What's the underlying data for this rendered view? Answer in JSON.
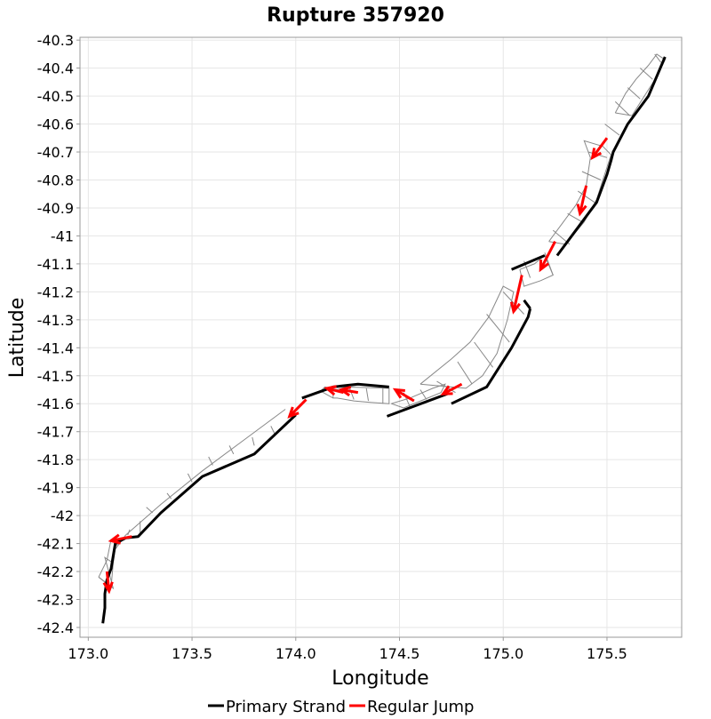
{
  "chart_data": {
    "type": "map-line",
    "title": "Rupture 357920",
    "xlabel": "Longitude",
    "ylabel": "Latitude",
    "xlim": [
      172.96,
      175.86
    ],
    "ylim": [
      -42.435,
      -40.29
    ],
    "x_ticks": [
      173.0,
      173.5,
      174.0,
      174.5,
      175.0,
      175.5
    ],
    "x_tick_labels": [
      "173.0",
      "173.5",
      "174.0",
      "174.5",
      "175.0",
      "175.5"
    ],
    "y_ticks": [
      -40.3,
      -40.4,
      -40.5,
      -40.6,
      -40.7,
      -40.8,
      -40.9,
      -41.0,
      -41.1,
      -41.2,
      -41.3,
      -41.4,
      -41.5,
      -41.6,
      -41.7,
      -41.8,
      -41.9,
      -42.0,
      -42.1,
      -42.2,
      -42.3,
      -42.4
    ],
    "y_tick_labels": [
      "-40.3",
      "-40.4",
      "-40.5",
      "-40.6",
      "-40.7",
      "-40.8",
      "-40.9",
      "-41",
      "-41.1",
      "-41.2",
      "-41.3",
      "-41.4",
      "-41.5",
      "-41.6",
      "-41.7",
      "-41.8",
      "-41.9",
      "-42",
      "-42.1",
      "-42.2",
      "-42.3",
      "-42.4"
    ],
    "grid": true,
    "legend_position": "bottom",
    "legend": [
      {
        "label": "Primary Strand",
        "color": "#000000"
      },
      {
        "label": "Regular Jump",
        "color": "#ff0000"
      }
    ],
    "primary_strand_color": "#000000",
    "jump_color": "#ff0000",
    "outline_color": "#888888",
    "series": [
      {
        "name": "Primary Strand",
        "style": "primary",
        "segments": [
          [
            [
              173.07,
              -42.385
            ],
            [
              173.08,
              -42.33
            ],
            [
              173.08,
              -42.28
            ],
            [
              173.09,
              -42.23
            ],
            [
              173.11,
              -42.19
            ],
            [
              173.13,
              -42.1
            ],
            [
              173.18,
              -42.08
            ],
            [
              173.24,
              -42.075
            ],
            [
              173.35,
              -41.99
            ],
            [
              173.55,
              -41.86
            ],
            [
              173.8,
              -41.78
            ],
            [
              174.0,
              -41.64
            ]
          ],
          [
            [
              174.03,
              -41.58
            ],
            [
              174.18,
              -41.54
            ],
            [
              174.3,
              -41.53
            ],
            [
              174.45,
              -41.54
            ]
          ],
          [
            [
              174.44,
              -41.645
            ],
            [
              174.73,
              -41.565
            ]
          ],
          [
            [
              174.75,
              -41.6
            ],
            [
              174.92,
              -41.54
            ],
            [
              175.04,
              -41.4
            ],
            [
              175.12,
              -41.29
            ],
            [
              175.13,
              -41.26
            ]
          ],
          [
            [
              175.13,
              -41.26
            ],
            [
              175.1,
              -41.23
            ]
          ],
          [
            [
              175.04,
              -41.12
            ],
            [
              175.2,
              -41.07
            ]
          ],
          [
            [
              175.26,
              -41.07
            ],
            [
              175.34,
              -40.99
            ],
            [
              175.45,
              -40.88
            ],
            [
              175.5,
              -40.78
            ],
            [
              175.52,
              -40.73
            ],
            [
              175.53,
              -40.7
            ],
            [
              175.6,
              -40.6
            ],
            [
              175.7,
              -40.5
            ],
            [
              175.78,
              -40.36
            ]
          ]
        ]
      },
      {
        "name": "Regular Jump",
        "style": "jump",
        "segments": [
          [
            [
              175.5,
              -40.65
            ],
            [
              175.43,
              -40.72
            ]
          ],
          [
            [
              175.4,
              -40.82
            ],
            [
              175.37,
              -40.92
            ]
          ],
          [
            [
              175.25,
              -41.02
            ],
            [
              175.18,
              -41.12
            ]
          ],
          [
            [
              175.09,
              -41.14
            ],
            [
              175.05,
              -41.27
            ]
          ],
          [
            [
              174.8,
              -41.53
            ],
            [
              174.71,
              -41.565
            ]
          ],
          [
            [
              174.57,
              -41.59
            ],
            [
              174.48,
              -41.55
            ]
          ],
          [
            [
              174.3,
              -41.56
            ],
            [
              174.22,
              -41.55
            ]
          ],
          [
            [
              174.23,
              -41.56
            ],
            [
              174.15,
              -41.545
            ]
          ],
          [
            [
              174.05,
              -41.585
            ],
            [
              173.97,
              -41.645
            ]
          ],
          [
            [
              173.21,
              -42.075
            ],
            [
              173.11,
              -42.09
            ]
          ],
          [
            [
              173.09,
              -42.2
            ],
            [
              173.1,
              -42.27
            ]
          ]
        ]
      }
    ],
    "fault_sections": [
      [
        [
          173.05,
          -42.22
        ],
        [
          173.12,
          -42.26
        ],
        [
          173.08,
          -42.15
        ],
        [
          173.12,
          -42.17
        ]
      ],
      [
        [
          173.13,
          -42.11
        ],
        [
          173.16,
          -42.09
        ]
      ],
      [
        [
          173.19,
          -42.07
        ],
        [
          173.2,
          -42.05
        ]
      ],
      [
        [
          173.25,
          -42.07
        ],
        [
          173.25,
          -42.02
        ]
      ],
      [
        [
          173.31,
          -41.99
        ],
        [
          173.28,
          -41.97
        ]
      ],
      [
        [
          173.4,
          -41.94
        ],
        [
          173.38,
          -41.92
        ]
      ],
      [
        [
          173.5,
          -41.88
        ],
        [
          173.48,
          -41.85
        ]
      ],
      [
        [
          173.6,
          -41.82
        ],
        [
          173.58,
          -41.79
        ]
      ],
      [
        [
          173.7,
          -41.78
        ],
        [
          173.68,
          -41.75
        ]
      ],
      [
        [
          173.8,
          -41.75
        ],
        [
          173.79,
          -41.72
        ]
      ],
      [
        [
          173.9,
          -41.71
        ],
        [
          173.88,
          -41.68
        ]
      ],
      [
        [
          174.18,
          -41.555
        ],
        [
          174.18,
          -41.58
        ]
      ],
      [
        [
          174.26,
          -41.545
        ],
        [
          174.28,
          -41.585
        ]
      ],
      [
        [
          174.34,
          -41.545
        ],
        [
          174.35,
          -41.59
        ]
      ],
      [
        [
          174.42,
          -41.545
        ],
        [
          174.42,
          -41.6
        ]
      ],
      [
        [
          174.55,
          -41.61
        ],
        [
          174.52,
          -41.56
        ]
      ],
      [
        [
          174.63,
          -41.585
        ],
        [
          174.6,
          -41.55
        ]
      ],
      [
        [
          174.77,
          -41.56
        ],
        [
          174.68,
          -41.52
        ]
      ],
      [
        [
          174.85,
          -41.53
        ],
        [
          174.78,
          -41.45
        ]
      ],
      [
        [
          174.95,
          -41.47
        ],
        [
          174.86,
          -41.38
        ]
      ],
      [
        [
          175.03,
          -41.38
        ],
        [
          174.92,
          -41.28
        ]
      ],
      [
        [
          175.1,
          -41.28
        ],
        [
          175.0,
          -41.2
        ]
      ],
      [
        [
          175.13,
          -41.15
        ],
        [
          175.1,
          -41.09
        ]
      ],
      [
        [
          175.24,
          -41.14
        ],
        [
          175.2,
          -41.06
        ]
      ],
      [
        [
          175.32,
          -41.03
        ],
        [
          175.24,
          -40.98
        ]
      ],
      [
        [
          175.38,
          -40.95
        ],
        [
          175.31,
          -40.92
        ]
      ],
      [
        [
          175.44,
          -40.88
        ],
        [
          175.36,
          -40.84
        ]
      ],
      [
        [
          175.47,
          -40.8
        ],
        [
          175.38,
          -40.77
        ]
      ],
      [
        [
          175.5,
          -40.72
        ],
        [
          175.41,
          -40.7
        ]
      ],
      [
        [
          175.56,
          -40.64
        ],
        [
          175.49,
          -40.6
        ]
      ],
      [
        [
          175.61,
          -40.57
        ],
        [
          175.54,
          -40.52
        ]
      ],
      [
        [
          175.66,
          -40.51
        ],
        [
          175.6,
          -40.47
        ]
      ],
      [
        [
          175.72,
          -40.44
        ],
        [
          175.66,
          -40.4
        ]
      ],
      [
        [
          175.76,
          -40.38
        ],
        [
          175.73,
          -40.35
        ]
      ]
    ],
    "fault_outlines": [
      [
        [
          173.05,
          -42.22
        ],
        [
          173.09,
          -42.16
        ],
        [
          173.11,
          -42.085
        ],
        [
          173.16,
          -42.09
        ],
        [
          173.18,
          -42.07
        ],
        [
          173.13,
          -42.12
        ],
        [
          173.12,
          -42.17
        ],
        [
          173.11,
          -42.255
        ],
        [
          173.05,
          -42.22
        ]
      ],
      [
        [
          173.18,
          -42.07
        ],
        [
          173.35,
          -41.96
        ],
        [
          173.55,
          -41.84
        ],
        [
          173.75,
          -41.73
        ],
        [
          173.95,
          -41.62
        ]
      ],
      [
        [
          174.12,
          -41.555
        ],
        [
          174.14,
          -41.54
        ],
        [
          174.2,
          -41.55
        ],
        [
          174.24,
          -41.54
        ],
        [
          174.45,
          -41.545
        ],
        [
          174.45,
          -41.6
        ],
        [
          174.36,
          -41.595
        ],
        [
          174.28,
          -41.59
        ],
        [
          174.2,
          -41.58
        ],
        [
          174.18,
          -41.58
        ],
        [
          174.12,
          -41.555
        ]
      ],
      [
        [
          174.46,
          -41.6
        ],
        [
          174.55,
          -41.58
        ],
        [
          174.66,
          -41.545
        ],
        [
          174.72,
          -41.53
        ],
        [
          174.7,
          -41.56
        ],
        [
          174.52,
          -41.615
        ],
        [
          174.46,
          -41.6
        ]
      ],
      [
        [
          174.6,
          -41.53
        ],
        [
          174.75,
          -41.44
        ],
        [
          174.84,
          -41.38
        ],
        [
          174.93,
          -41.29
        ],
        [
          175.0,
          -41.18
        ],
        [
          175.05,
          -41.2
        ],
        [
          175.02,
          -41.3
        ],
        [
          174.97,
          -41.42
        ],
        [
          174.9,
          -41.5
        ],
        [
          174.82,
          -41.545
        ],
        [
          174.6,
          -41.53
        ]
      ],
      [
        [
          175.08,
          -41.12
        ],
        [
          175.15,
          -41.1
        ],
        [
          175.2,
          -41.07
        ],
        [
          175.24,
          -41.14
        ],
        [
          175.18,
          -41.16
        ],
        [
          175.1,
          -41.18
        ],
        [
          175.08,
          -41.12
        ]
      ],
      [
        [
          175.22,
          -41.02
        ],
        [
          175.28,
          -40.96
        ],
        [
          175.35,
          -40.89
        ],
        [
          175.4,
          -40.82
        ],
        [
          175.42,
          -40.72
        ],
        [
          175.39,
          -40.66
        ],
        [
          175.48,
          -40.68
        ],
        [
          175.52,
          -40.71
        ],
        [
          175.48,
          -40.8
        ],
        [
          175.45,
          -40.87
        ],
        [
          175.39,
          -40.95
        ],
        [
          175.3,
          -41.03
        ],
        [
          175.22,
          -41.02
        ]
      ],
      [
        [
          175.54,
          -40.56
        ],
        [
          175.59,
          -40.49
        ],
        [
          175.64,
          -40.44
        ],
        [
          175.7,
          -40.39
        ],
        [
          175.74,
          -40.35
        ],
        [
          175.78,
          -40.37
        ],
        [
          175.74,
          -40.43
        ],
        [
          175.68,
          -40.5
        ],
        [
          175.62,
          -40.57
        ],
        [
          175.54,
          -40.56
        ]
      ]
    ]
  }
}
